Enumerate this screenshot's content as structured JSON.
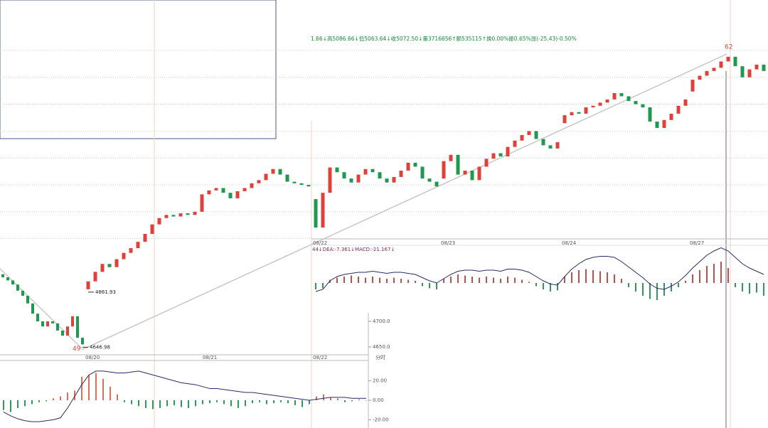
{
  "header": "1.66↓高5086.66↓低5063.64↓收5072.50↓量3716656↑额535115↑换0.00%振0.65%涨(-25.43)-0.50%",
  "chart_data": [
    {
      "type": "candlestick",
      "categories": [
        null,
        null,
        null,
        null,
        null,
        null,
        null,
        null,
        null,
        null,
        null,
        null,
        null,
        null,
        null,
        null,
        null,
        null,
        null,
        null,
        null,
        null,
        null,
        null,
        null,
        null,
        null,
        null,
        null,
        null,
        null,
        null,
        "08/22",
        null,
        null,
        null,
        null,
        null,
        null,
        null,
        null,
        null,
        null,
        null,
        null,
        null,
        null,
        null,
        null,
        null,
        "08/23",
        null,
        null,
        null,
        null,
        null,
        null,
        null,
        null,
        null,
        null,
        null,
        null,
        null,
        null,
        null,
        null,
        "08/24",
        null,
        null,
        null,
        null,
        null,
        null,
        null,
        null,
        null,
        null,
        null,
        null,
        null,
        null,
        null,
        null,
        null,
        "08/27",
        null,
        null,
        null,
        null,
        null,
        null,
        null,
        null,
        null,
        null
      ],
      "open": [
        4790,
        4800,
        4812,
        4822,
        4818,
        4828,
        4836,
        4842,
        4850,
        4860,
        4872,
        4880,
        4884,
        4882,
        4886,
        4884,
        4888,
        4910,
        4915,
        4918,
        4912,
        4905,
        4914,
        4918,
        4924,
        4928,
        4936,
        4942,
        4935,
        4926,
        4924,
        4922,
        4904,
        4868,
        4912,
        4944,
        4938,
        4930,
        4925,
        4935,
        4942,
        4938,
        4930,
        4925,
        4932,
        4940,
        4950,
        4945,
        4930,
        4926,
        4930,
        4952,
        4960,
        4935,
        4940,
        4928,
        4945,
        4955,
        4962,
        4958,
        4970,
        4978,
        4985,
        4990,
        4980,
        4972,
        4968,
        5000,
        5010,
        5014,
        5012,
        5020,
        5022,
        5026,
        5030,
        5038,
        5034,
        5028,
        5024,
        5020,
        5002,
        4994,
        5004,
        5012,
        5022,
        5040,
        5055,
        5060,
        5066,
        5070,
        5078,
        5084,
        5072,
        5058,
        5068,
        5074
      ],
      "close": [
        4800,
        4812,
        4822,
        4818,
        4828,
        4836,
        4842,
        4850,
        4860,
        4872,
        4880,
        4884,
        4882,
        4886,
        4884,
        4888,
        4910,
        4915,
        4918,
        4912,
        4905,
        4914,
        4918,
        4924,
        4928,
        4936,
        4942,
        4935,
        4926,
        4924,
        4922,
        4920,
        4868,
        4912,
        4944,
        4938,
        4930,
        4925,
        4935,
        4942,
        4938,
        4930,
        4925,
        4932,
        4940,
        4950,
        4945,
        4930,
        4926,
        4920,
        4952,
        4960,
        4935,
        4940,
        4928,
        4945,
        4955,
        4962,
        4958,
        4970,
        4978,
        4985,
        4990,
        4980,
        4972,
        4968,
        4976,
        5010,
        5014,
        5012,
        5020,
        5022,
        5026,
        5030,
        5038,
        5034,
        5028,
        5024,
        5020,
        5002,
        4994,
        5004,
        5012,
        5022,
        5030,
        5055,
        5060,
        5066,
        5070,
        5078,
        5084,
        5072,
        5058,
        5068,
        5074,
        5066
      ],
      "ylim": [
        4780,
        5100
      ],
      "yticks": [
        4854,
        4888,
        4922,
        4956,
        4990,
        5024,
        5058,
        5092
      ],
      "grid": true,
      "up_color": "#e0403a",
      "down_color": "#1d9a4e",
      "low_label": "4861.93",
      "high_label": "62"
    },
    {
      "type": "macd",
      "label": "44↓DEA:-7.361↓MACD:-21.167↓",
      "values": [
        -6,
        -5,
        3,
        5,
        6,
        7,
        6,
        5,
        6,
        5,
        4,
        5,
        4,
        3,
        2,
        -3,
        -5,
        -6,
        4,
        6,
        8,
        7,
        6,
        5,
        6,
        5,
        4,
        6,
        5,
        3,
        1,
        -3,
        -6,
        -8,
        -7,
        6,
        10,
        12,
        13,
        12,
        11,
        10,
        8,
        4,
        -4,
        -8,
        -12,
        -15,
        -16,
        -12,
        -8,
        -4,
        2,
        8,
        12,
        16,
        18,
        20,
        14,
        -4,
        -8,
        -10,
        -9,
        -12
      ],
      "dif": [
        -8,
        -6,
        2,
        6,
        8,
        9,
        10,
        10,
        11,
        10,
        9,
        10,
        10,
        9,
        8,
        5,
        2,
        0,
        4,
        8,
        11,
        12,
        12,
        11,
        12,
        12,
        11,
        13,
        13,
        12,
        10,
        6,
        2,
        -1,
        -2,
        6,
        13,
        18,
        22,
        24,
        25,
        25,
        24,
        20,
        15,
        10,
        5,
        -1,
        -5,
        -6,
        -3,
        1,
        7,
        14,
        20,
        26,
        30,
        33,
        30,
        24,
        18,
        14,
        11,
        8
      ],
      "ylim": [
        -30,
        30
      ],
      "up_color": "#c0504d",
      "down_color": "#2e9a5a",
      "line_color": "#2a2a6a"
    },
    {
      "type": "candlestick",
      "categories": [
        null,
        null,
        null,
        null,
        null,
        null,
        null,
        null,
        null,
        null,
        null,
        null,
        null,
        null,
        null,
        null,
        null
      ],
      "open": [
        4792,
        4786,
        4780,
        4772,
        4760,
        4750,
        4735,
        4715,
        4700,
        4690,
        4700,
        4696,
        4682,
        4672,
        4690,
        4710,
        4668
      ],
      "close": [
        4786,
        4780,
        4772,
        4760,
        4750,
        4735,
        4715,
        4700,
        4690,
        4700,
        4696,
        4682,
        4672,
        4690,
        4710,
        4668,
        4655
      ],
      "ylim": [
        4640,
        4805
      ],
      "yticks": [
        {
          "value": 4700,
          "label": "4700.0"
        },
        {
          "value": 4650,
          "label": "4650.0"
        }
      ],
      "grid": false,
      "up_color": "#e0403a",
      "down_color": "#1d9a4e",
      "date_labels": [
        "08/20",
        "08/21",
        "08/22"
      ],
      "axis_label": "分时",
      "low_label": "4646.98",
      "low_marker": "49"
    },
    {
      "type": "macd",
      "values": [
        -10,
        -12,
        -8,
        -6,
        -4,
        -2,
        -1,
        2,
        4,
        8,
        10,
        24,
        26,
        28,
        22,
        14,
        6,
        -2,
        -4,
        -6,
        -8,
        -9,
        -8,
        -6,
        -5,
        -7,
        -8,
        -6,
        -4,
        -3,
        -2,
        -4,
        -6,
        -8,
        -6,
        -3,
        -2,
        -4,
        -3,
        -2,
        -3,
        -5,
        -7,
        -4,
        4,
        6,
        3,
        2,
        -2,
        -1,
        1,
        0
      ],
      "dif": [
        -12,
        -16,
        -19,
        -21,
        -22,
        -22,
        -21,
        -20,
        -18,
        -8,
        4,
        16,
        26,
        30,
        30,
        29,
        28,
        28,
        29,
        30,
        28,
        26,
        24,
        22,
        20,
        18,
        17,
        16,
        14,
        12,
        12,
        11,
        10,
        9,
        8,
        8,
        7,
        6,
        5,
        4,
        3,
        2,
        1,
        0,
        1,
        2,
        3,
        3,
        3,
        2,
        2,
        2
      ],
      "ylim": [
        -27,
        27
      ],
      "yticks": [
        {
          "value": 20,
          "label": "20.00"
        },
        {
          "value": 0,
          "label": "0.00"
        },
        {
          "value": -20,
          "label": "-20.00"
        }
      ],
      "up_color": "#d9705f",
      "down_color": "#2e9a5a",
      "line_color": "#2a2a6a"
    }
  ]
}
